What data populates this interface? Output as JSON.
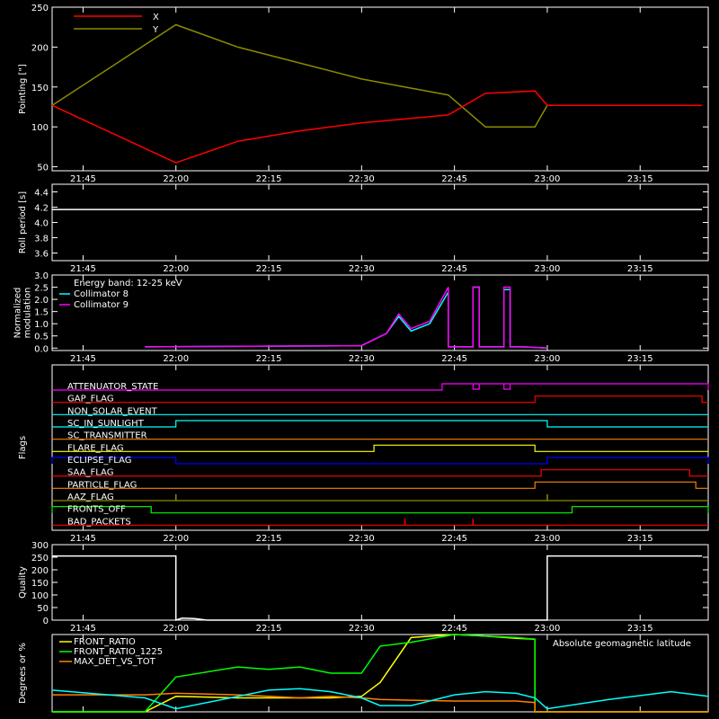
{
  "chart_data": [
    {
      "type": "line",
      "ylabel": "Pointing [\"]",
      "ylim": [
        45,
        250
      ],
      "yticks": [
        50,
        100,
        150,
        200,
        250
      ],
      "x": [
        "21:40",
        "22:00",
        "22:10",
        "22:20",
        "22:30",
        "22:44",
        "22:50",
        "22:58",
        "23:00",
        "23:25"
      ],
      "series": [
        {
          "name": "X",
          "color": "#ff0000",
          "values": [
            127,
            55,
            82,
            95,
            105,
            115,
            142,
            145,
            127,
            127
          ]
        },
        {
          "name": "Y",
          "color": "#8b8b00",
          "values": [
            127,
            228,
            200,
            180,
            160,
            140,
            100,
            100,
            127,
            127
          ]
        }
      ],
      "legend": "top-left"
    },
    {
      "type": "line",
      "ylabel": "Roll period [s]",
      "ylim": [
        3.5,
        4.5
      ],
      "yticks": [
        3.6,
        3.8,
        4.0,
        4.2,
        4.4
      ],
      "x": [
        "21:40",
        "23:25"
      ],
      "series": [
        {
          "color": "#ffffff",
          "values": [
            4.17,
            4.17
          ]
        }
      ]
    },
    {
      "type": "line",
      "ylabel": [
        "Normalized",
        "modulation"
      ],
      "ylim": [
        -0.1,
        3.0
      ],
      "yticks": [
        0.0,
        0.5,
        1.0,
        1.5,
        2.0,
        2.5,
        3.0
      ],
      "annotation": "Energy band: 12-25 keV",
      "x": [
        "21:55",
        "22:30",
        "22:34",
        "22:36",
        "22:38",
        "22:41",
        "22:44",
        "22:44",
        "22:45",
        "22:48",
        "22:48",
        "22:49",
        "22:49",
        "22:53",
        "22:53",
        "22:54",
        "22:54",
        "22:56",
        "23:00"
      ],
      "series": [
        {
          "name": "Collimator 8",
          "color": "#00ffff",
          "values": [
            0.05,
            0.1,
            0.6,
            1.3,
            0.7,
            1.0,
            2.3,
            0.05,
            0.05,
            0.05,
            2.5,
            2.5,
            0.05,
            0.05,
            2.4,
            2.4,
            0.05,
            0.05,
            0.0
          ]
        },
        {
          "name": "Collimator 9",
          "color": "#ff00ff",
          "values": [
            0.05,
            0.1,
            0.6,
            1.4,
            0.8,
            1.1,
            2.5,
            0.05,
            0.05,
            0.05,
            2.5,
            2.5,
            0.05,
            0.05,
            2.5,
            2.5,
            0.05,
            0.05,
            0.0
          ]
        }
      ],
      "legend": "top-left"
    },
    {
      "type": "line",
      "ylabel": "Flags",
      "flags": [
        {
          "name": "ATTENUATOR_STATE",
          "color": "#ff00ff",
          "on": [
            [
              "22:43",
              "23:26"
            ]
          ],
          "off_spans": [
            [
              "22:48",
              "22:49"
            ],
            [
              "22:53",
              "22:54"
            ]
          ]
        },
        {
          "name": "GAP_FLAG",
          "color": "#ff0000",
          "on": [
            [
              "22:58",
              "23:25"
            ]
          ]
        },
        {
          "name": "NON_SOLAR_EVENT",
          "color": "#00ffff",
          "on": []
        },
        {
          "name": "SC_IN_SUNLIGHT",
          "color": "#00ffff",
          "on": [
            [
              "22:00",
              "23:00"
            ]
          ]
        },
        {
          "name": "SC_TRANSMITTER",
          "color": "#ff8000",
          "on": []
        },
        {
          "name": "FLARE_FLAG",
          "color": "#ffff00",
          "on": [
            [
              "22:32",
              "22:58"
            ]
          ]
        },
        {
          "name": "ECLIPSE_FLAG",
          "color": "#0000ff",
          "on": [
            [
              "21:40",
              "22:00"
            ],
            [
              "23:00",
              "23:26"
            ]
          ]
        },
        {
          "name": "SAA_FLAG",
          "color": "#ff0000",
          "on": [
            [
              "22:59",
              "23:23"
            ]
          ]
        },
        {
          "name": "PARTICLE_FLAG",
          "color": "#ff8000",
          "on": [
            [
              "22:58",
              "23:24"
            ]
          ]
        },
        {
          "name": "AAZ_FLAG",
          "color": "#8b8b00",
          "on": [],
          "spikes": [
            "22:00",
            "23:00"
          ]
        },
        {
          "name": "FRONTS_OFF",
          "color": "#00ff00",
          "on": [
            [
              "21:40",
              "21:56"
            ],
            [
              "23:04",
              "23:26"
            ]
          ]
        },
        {
          "name": "BAD_PACKETS",
          "color": "#ff0000",
          "on": [],
          "spikes": [
            "22:37",
            "22:48"
          ]
        }
      ]
    },
    {
      "type": "line",
      "ylabel": "Quality",
      "ylim": [
        0,
        300
      ],
      "yticks": [
        0,
        50,
        100,
        150,
        200,
        250,
        300
      ],
      "x": [
        "21:40",
        "22:00",
        "22:00",
        "22:01",
        "22:03",
        "22:05",
        "23:00",
        "23:00",
        "23:00",
        "23:25"
      ],
      "series": [
        {
          "color": "#ffffff",
          "values": [
            255,
            255,
            0,
            8,
            6,
            0,
            0,
            120,
            255,
            255
          ]
        }
      ]
    },
    {
      "type": "line",
      "ylabel": "Degrees or %",
      "ylim": [
        0,
        100
      ],
      "annotation": "Absolute geomagnetic latitude",
      "x": [
        "21:40",
        "21:55",
        "22:00",
        "22:10",
        "22:15",
        "22:20",
        "22:25",
        "22:30",
        "22:33",
        "22:38",
        "22:45",
        "22:50",
        "22:55",
        "22:58",
        "22:58",
        "23:00",
        "23:10",
        "23:20",
        "23:26"
      ],
      "series": [
        {
          "name": "FRONT_RATIO",
          "color": "#ffff00",
          "values": [
            0,
            0,
            20,
            18,
            18,
            18,
            18,
            20,
            38,
            96,
            100,
            98,
            95,
            94,
            0,
            0,
            0,
            0,
            0
          ]
        },
        {
          "name": "FRONT_RATIO_1225",
          "color": "#00ff00",
          "values": [
            0,
            0,
            45,
            58,
            55,
            58,
            50,
            50,
            85,
            90,
            100,
            98,
            96,
            94,
            0,
            0,
            0,
            0,
            0
          ]
        },
        {
          "name": "MAX_DET_VS_TOT",
          "color": "#ff8000",
          "values": [
            22,
            22,
            24,
            22,
            20,
            18,
            20,
            18,
            16,
            15,
            14,
            14,
            14,
            12,
            0,
            0,
            0,
            0,
            0
          ]
        },
        {
          "name": "Absolute geomagnetic latitude",
          "color": "#00ffff",
          "values": [
            28,
            18,
            4,
            20,
            28,
            30,
            26,
            18,
            8,
            8,
            22,
            26,
            24,
            18,
            18,
            4,
            16,
            26,
            20
          ]
        }
      ],
      "legend": "top-left"
    }
  ],
  "time_axis": {
    "range": [
      "21:40",
      "23:26"
    ],
    "ticks": [
      "21:45",
      "22:00",
      "22:15",
      "22:30",
      "22:45",
      "23:00",
      "23:15"
    ]
  }
}
